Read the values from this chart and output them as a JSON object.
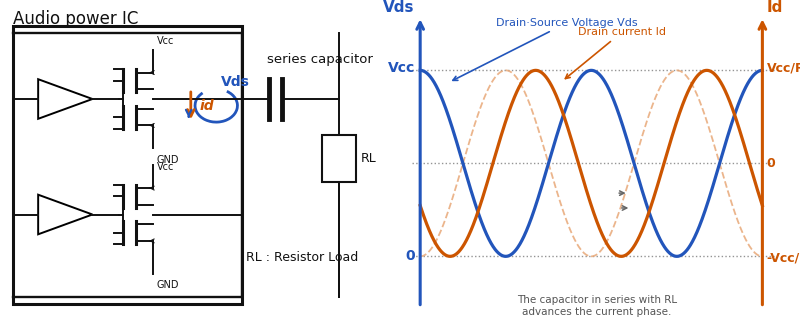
{
  "fig_width": 8.0,
  "fig_height": 3.3,
  "dpi": 100,
  "bg_color": "#ffffff",
  "title_text": "Audio power IC",
  "title_fontsize": 12,
  "series_cap_label": "series capacitor",
  "rl_label": "RL",
  "rl_resistor_label": "RL : Resistor Load",
  "vcc_label": "Vcc",
  "gnd_label": "GND",
  "id_label": "id",
  "vds_label": "Vds",
  "blue_color": "#2255bb",
  "orange_color": "#cc5500",
  "dashed_orange": "#e8a878",
  "wave_title_vds": "Drain·Source Voltage Vds",
  "wave_title_id": "Drain current Id",
  "wave_label_vds": "Vds",
  "wave_label_id": "Id",
  "wave_label_vcc": "Vcc",
  "wave_label_0_left": "0",
  "wave_label_0_right": "0",
  "wave_label_vcc_rl": "Vcc/RL",
  "wave_label_neg_vcc_rl": "-Vcc/RL",
  "annotation_text": "The capacitor in series with RL\nadvances the current phase.",
  "phase_shift": 1.1,
  "num_cycles": 2.5
}
